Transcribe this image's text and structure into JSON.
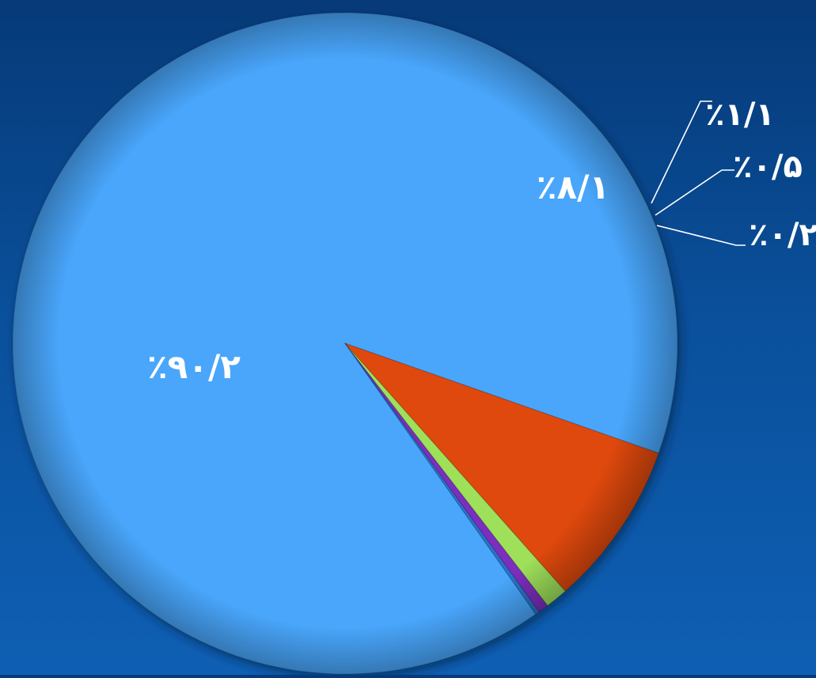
{
  "chart_data": {
    "type": "pie",
    "title": "",
    "slices": [
      {
        "label": "٪۹۰/۲",
        "value": 90.2,
        "color": "#48a6fb"
      },
      {
        "label": "٪۸/۱",
        "value": 8.1,
        "color": "#e0490a"
      },
      {
        "label": "٪۱/۱",
        "value": 1.1,
        "color": "#9ee05a"
      },
      {
        "label": "٪۰/۵",
        "value": 0.5,
        "color": "#7b2fbe"
      },
      {
        "label": "٪۰/۲",
        "value": 0.2,
        "color": "#2a72c8"
      }
    ],
    "legend": "none"
  }
}
